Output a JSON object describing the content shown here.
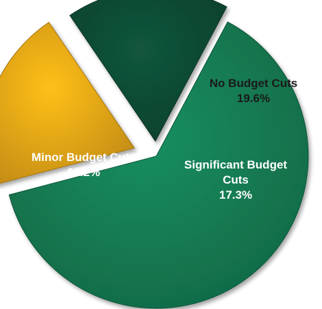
{
  "chart_data": {
    "type": "pie",
    "title": "",
    "slices": [
      {
        "label_lines": [
          "Minor Budget Cuts"
        ],
        "label": "Minor Budget Cuts",
        "value": 63.2,
        "value_text": "63.2%",
        "color": "#137a52",
        "label_color": "#ffffff"
      },
      {
        "label_lines": [
          "No Budget Cuts"
        ],
        "label": "No Budget Cuts",
        "value": 19.6,
        "value_text": "19.6%",
        "color": "#e6a316",
        "label_color": "#1a1a1a"
      },
      {
        "label_lines": [
          "Significant Budget",
          "Cuts"
        ],
        "label": "Significant Budget Cuts",
        "value": 17.3,
        "value_text": "17.3%",
        "color": "#0f4a33",
        "label_color": "#ffffff"
      }
    ],
    "legend": "none",
    "style": "exploded 3D-style pie"
  }
}
